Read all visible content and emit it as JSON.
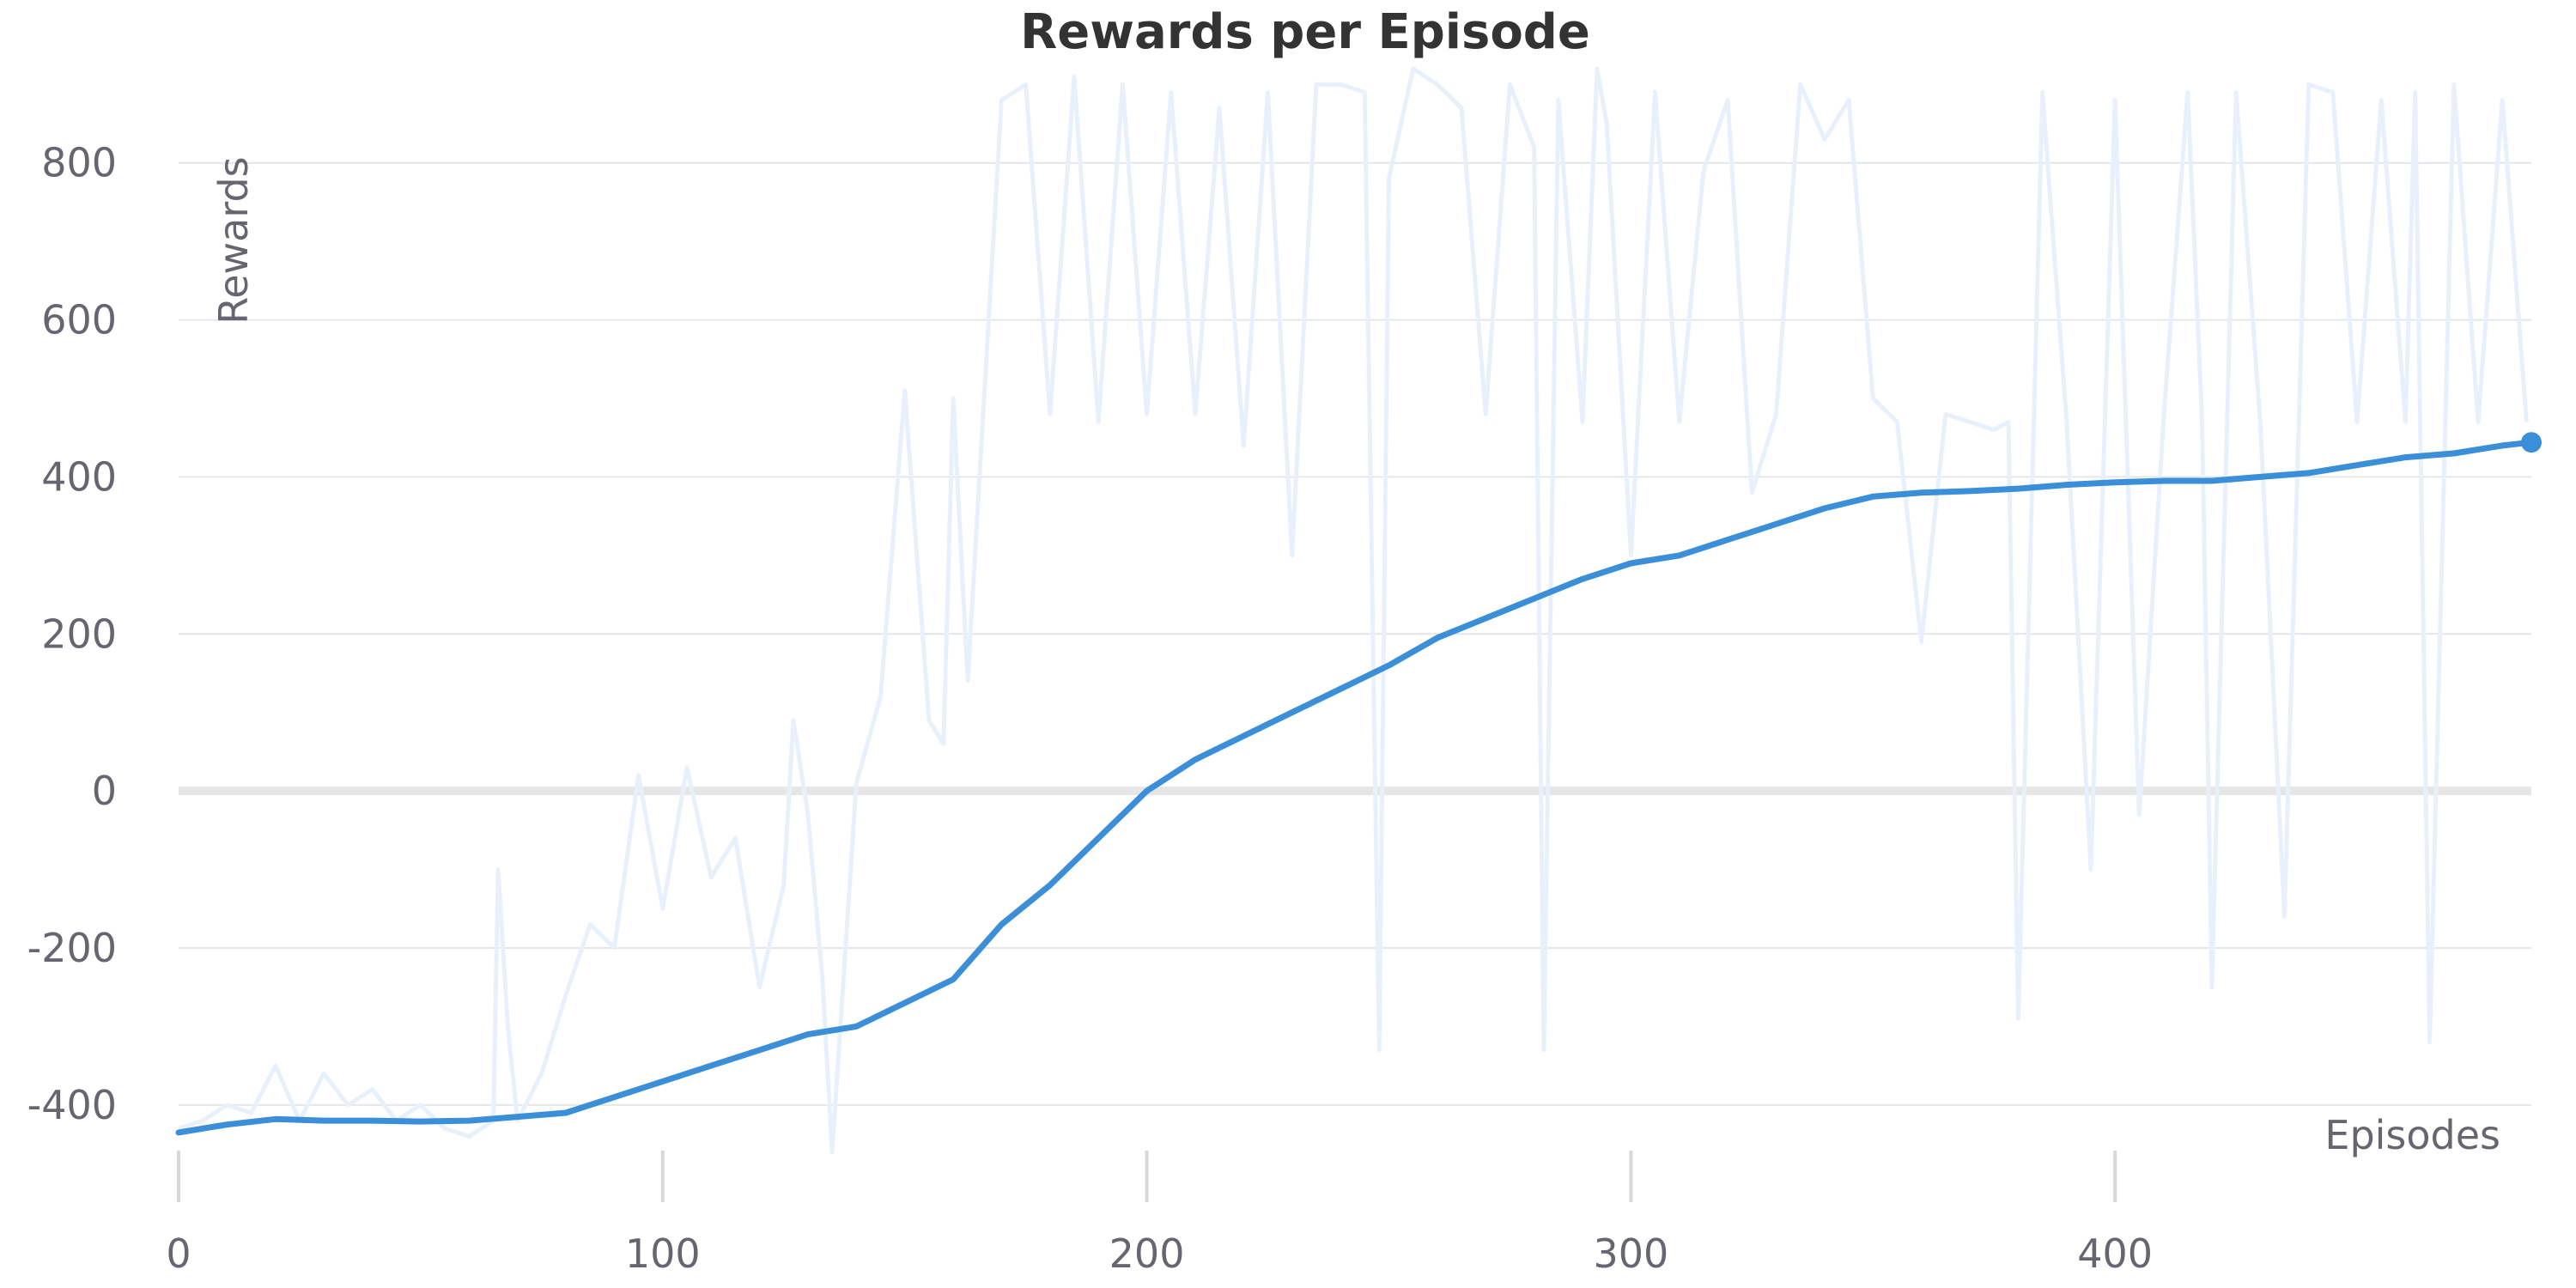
{
  "chart_data": {
    "type": "line",
    "title": "Rewards per Episode",
    "xlabel": "Episodes",
    "ylabel": "Rewards",
    "xlim": [
      0,
      486
    ],
    "ylim": [
      -550,
      920
    ],
    "x_ticks": [
      0,
      100,
      200,
      300,
      400
    ],
    "y_ticks": [
      -400,
      -200,
      0,
      200,
      400,
      600,
      800
    ],
    "grid": true,
    "colors": {
      "raw": "#e8f1fb",
      "avg": "#3a8fd8",
      "zero_line": "#e6e6e6",
      "grid": "#e4e6ea"
    },
    "series": [
      {
        "role": "raw",
        "x": [
          0,
          5,
          10,
          15,
          20,
          25,
          30,
          35,
          40,
          45,
          50,
          55,
          60,
          65,
          66,
          68,
          70,
          75,
          80,
          85,
          90,
          95,
          100,
          105,
          110,
          115,
          120,
          125,
          127,
          130,
          133,
          135,
          140,
          145,
          150,
          155,
          158,
          160,
          163,
          166,
          170,
          175,
          180,
          185,
          190,
          195,
          200,
          205,
          210,
          215,
          220,
          225,
          230,
          235,
          240,
          245,
          248,
          250,
          255,
          260,
          265,
          270,
          275,
          280,
          282,
          285,
          290,
          293,
          295,
          300,
          305,
          310,
          315,
          320,
          325,
          330,
          335,
          340,
          345,
          350,
          355,
          360,
          365,
          370,
          375,
          378,
          380,
          385,
          390,
          395,
          400,
          405,
          410,
          415,
          418,
          420,
          425,
          430,
          435,
          440,
          445,
          450,
          455,
          460,
          462,
          465,
          470,
          475,
          480,
          485
        ],
        "values": [
          -430,
          -420,
          -400,
          -410,
          -350,
          -420,
          -360,
          -400,
          -380,
          -420,
          -400,
          -430,
          -440,
          -420,
          -100,
          -300,
          -420,
          -360,
          -260,
          -170,
          -200,
          20,
          -150,
          30,
          -110,
          -60,
          -250,
          -120,
          90,
          -30,
          -240,
          -460,
          10,
          120,
          510,
          90,
          60,
          500,
          140,
          460,
          880,
          900,
          480,
          910,
          470,
          900,
          480,
          890,
          480,
          870,
          440,
          890,
          300,
          900,
          900,
          890,
          -330,
          780,
          920,
          900,
          870,
          480,
          900,
          820,
          -330,
          880,
          470,
          920,
          850,
          300,
          890,
          470,
          790,
          880,
          380,
          480,
          900,
          830,
          880,
          500,
          470,
          190,
          480,
          470,
          460,
          470,
          -290,
          890,
          470,
          -100,
          880,
          -30,
          470,
          890,
          470,
          -250,
          890,
          470,
          -160,
          900,
          890,
          470,
          880,
          470,
          890,
          -320,
          900,
          470,
          880,
          470
        ]
      },
      {
        "role": "average",
        "x": [
          0,
          10,
          20,
          30,
          40,
          50,
          60,
          70,
          80,
          90,
          100,
          110,
          120,
          130,
          140,
          150,
          160,
          170,
          180,
          190,
          200,
          210,
          220,
          230,
          240,
          250,
          260,
          270,
          280,
          290,
          300,
          310,
          320,
          330,
          340,
          350,
          360,
          370,
          380,
          390,
          400,
          410,
          420,
          430,
          440,
          450,
          460,
          470,
          480,
          486
        ],
        "values": [
          -435,
          -425,
          -418,
          -420,
          -420,
          -421,
          -420,
          -415,
          -410,
          -390,
          -370,
          -350,
          -330,
          -310,
          -300,
          -270,
          -240,
          -170,
          -120,
          -60,
          0,
          40,
          70,
          100,
          130,
          160,
          195,
          220,
          245,
          270,
          290,
          300,
          320,
          340,
          360,
          375,
          380,
          382,
          385,
          390,
          393,
          395,
          395,
          400,
          405,
          415,
          425,
          430,
          440,
          444
        ]
      }
    ]
  }
}
